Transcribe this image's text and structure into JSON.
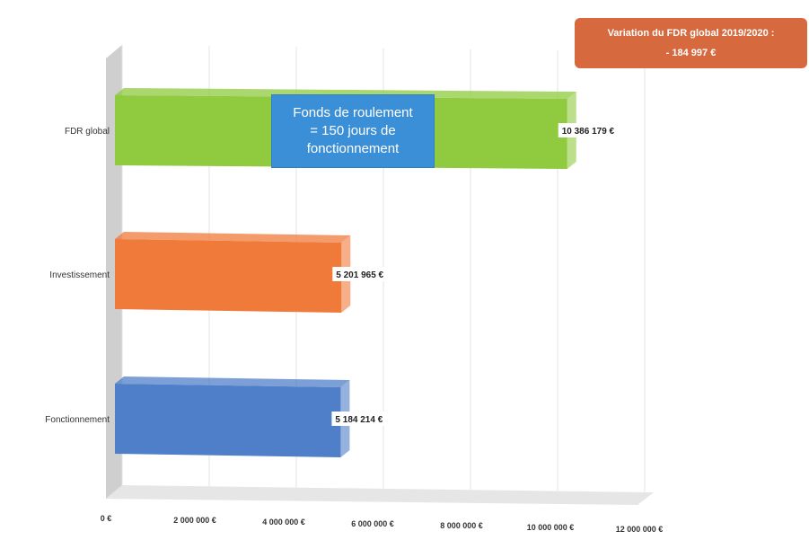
{
  "chart_data": {
    "type": "bar",
    "orientation": "horizontal",
    "categories": [
      "FDR global",
      "Investissement",
      "Fonctionnement"
    ],
    "values": [
      10386179,
      5201965,
      5184214
    ],
    "value_labels": [
      "10 386 179 €",
      "5 201 965 €",
      "5 184 214 €"
    ],
    "colors": [
      "#8fca3f",
      "#f07a3a",
      "#4f7fc8"
    ],
    "xlim": [
      0,
      12000000
    ],
    "x_ticks": [
      0,
      2000000,
      4000000,
      6000000,
      8000000,
      10000000,
      12000000
    ],
    "x_tick_labels": [
      "0 €",
      "2 000 000 €",
      "4 000 000 €",
      "6 000 000 €",
      "8 000 000 €",
      "10 000 000 €",
      "12 000 000 €"
    ],
    "grid": true,
    "title": "",
    "xlabel": "",
    "ylabel": ""
  },
  "annotations": {
    "callout_text": "Fonds de roulement\n= 150 jours de\nfonctionnement",
    "variation_line1": "Variation du FDR global 2019/2020 :",
    "variation_line2": "- 184 997 €"
  }
}
